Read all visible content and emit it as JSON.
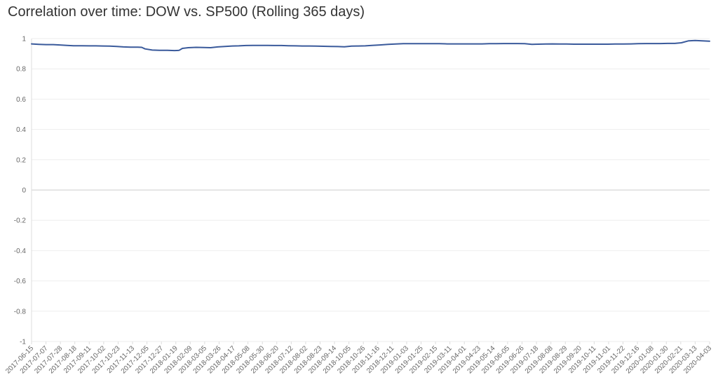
{
  "chart_data": {
    "type": "line",
    "title": "Correlation over time: DOW vs. SP500 (Rolling 365 days)",
    "xlabel": "",
    "ylabel": "",
    "ylim": [
      -1,
      1
    ],
    "y_ticks": [
      "1",
      "0.8",
      "0.6",
      "0.4",
      "0.2",
      "0",
      "-0.2",
      "-0.4",
      "-0.6",
      "-0.8",
      "-1"
    ],
    "x_tick_labels": [
      "2017-06-15",
      "2017-07-07",
      "2017-07-28",
      "2017-08-18",
      "2017-09-11",
      "2017-10-02",
      "2017-10-23",
      "2017-11-13",
      "2017-12-05",
      "2017-12-27",
      "2018-01-19",
      "2018-02-09",
      "2018-03-05",
      "2018-03-26",
      "2018-04-17",
      "2018-05-08",
      "2018-05-30",
      "2018-06-20",
      "2018-07-12",
      "2018-08-02",
      "2018-08-23",
      "2018-09-14",
      "2018-10-05",
      "2018-10-26",
      "2018-11-16",
      "2018-12-11",
      "2019-01-03",
      "2019-01-25",
      "2019-02-15",
      "2019-03-11",
      "2019-04-01",
      "2019-04-23",
      "2019-05-14",
      "2019-06-05",
      "2019-06-26",
      "2019-07-18",
      "2019-08-08",
      "2019-08-29",
      "2019-09-20",
      "2019-10-11",
      "2019-11-01",
      "2019-11-22",
      "2019-12-16",
      "2020-01-08",
      "2020-01-30",
      "2020-02-21",
      "2020-03-13",
      "2020-04-03"
    ],
    "grid": true,
    "line_color": "#3a5a9b",
    "series": [
      {
        "x": [
          "2017-06-15",
          "2017-06-26",
          "2017-07-07",
          "2017-07-18",
          "2017-07-28",
          "2017-08-08",
          "2017-08-18",
          "2017-08-30",
          "2017-09-11",
          "2017-09-21",
          "2017-10-02",
          "2017-10-12",
          "2017-10-23",
          "2017-11-02",
          "2017-11-13",
          "2017-11-24",
          "2017-11-30",
          "2017-12-05",
          "2017-12-16",
          "2017-12-27",
          "2018-01-08",
          "2018-01-19",
          "2018-01-26",
          "2018-01-31",
          "2018-02-09",
          "2018-02-21",
          "2018-03-05",
          "2018-03-15",
          "2018-03-26",
          "2018-04-06",
          "2018-04-17",
          "2018-04-27",
          "2018-05-08",
          "2018-05-19",
          "2018-05-30",
          "2018-06-09",
          "2018-06-20",
          "2018-07-01",
          "2018-07-12",
          "2018-07-23",
          "2018-08-02",
          "2018-08-13",
          "2018-08-23",
          "2018-09-03",
          "2018-09-14",
          "2018-09-25",
          "2018-10-05",
          "2018-10-16",
          "2018-10-26",
          "2018-11-06",
          "2018-11-16",
          "2018-11-28",
          "2018-12-11",
          "2018-12-22",
          "2019-01-03",
          "2019-01-14",
          "2019-01-25",
          "2019-02-05",
          "2019-02-15",
          "2019-02-27",
          "2019-03-11",
          "2019-03-21",
          "2019-04-01",
          "2019-04-12",
          "2019-04-23",
          "2019-05-03",
          "2019-05-14",
          "2019-05-25",
          "2019-06-05",
          "2019-06-15",
          "2019-06-26",
          "2019-07-07",
          "2019-07-18",
          "2019-07-28",
          "2019-08-08",
          "2019-08-18",
          "2019-08-29",
          "2019-09-09",
          "2019-09-20",
          "2019-09-30",
          "2019-10-11",
          "2019-10-21",
          "2019-11-01",
          "2019-11-11",
          "2019-11-22",
          "2019-12-04",
          "2019-12-16",
          "2019-12-27",
          "2020-01-08",
          "2020-01-19",
          "2020-01-30",
          "2020-02-10",
          "2020-02-21",
          "2020-03-02",
          "2020-03-13",
          "2020-03-23",
          "2020-04-03",
          "2020-04-14"
        ],
        "values": [
          0.965,
          0.962,
          0.96,
          0.96,
          0.958,
          0.955,
          0.953,
          0.953,
          0.952,
          0.952,
          0.951,
          0.95,
          0.948,
          0.945,
          0.943,
          0.943,
          0.942,
          0.932,
          0.924,
          0.922,
          0.922,
          0.921,
          0.922,
          0.935,
          0.94,
          0.942,
          0.941,
          0.94,
          0.945,
          0.948,
          0.951,
          0.952,
          0.954,
          0.955,
          0.955,
          0.955,
          0.954,
          0.954,
          0.953,
          0.952,
          0.951,
          0.951,
          0.95,
          0.949,
          0.948,
          0.947,
          0.946,
          0.95,
          0.951,
          0.952,
          0.955,
          0.958,
          0.962,
          0.964,
          0.966,
          0.966,
          0.966,
          0.966,
          0.966,
          0.966,
          0.965,
          0.965,
          0.965,
          0.965,
          0.965,
          0.965,
          0.966,
          0.966,
          0.967,
          0.967,
          0.967,
          0.966,
          0.962,
          0.963,
          0.964,
          0.965,
          0.964,
          0.964,
          0.963,
          0.963,
          0.963,
          0.963,
          0.963,
          0.963,
          0.964,
          0.964,
          0.965,
          0.966,
          0.967,
          0.967,
          0.967,
          0.968,
          0.968,
          0.972,
          0.985,
          0.987,
          0.985,
          0.983
        ]
      }
    ]
  }
}
